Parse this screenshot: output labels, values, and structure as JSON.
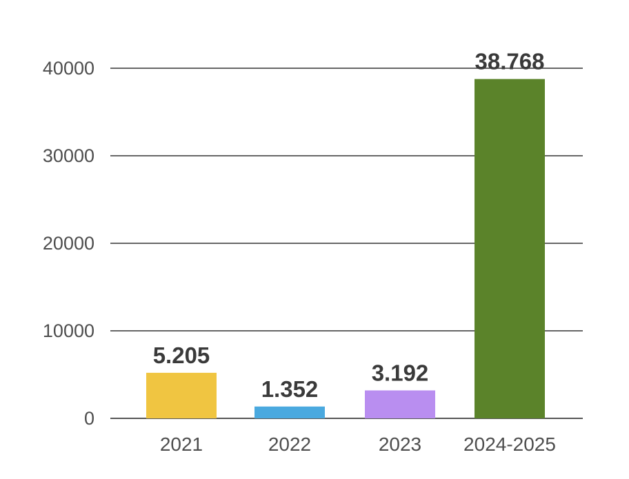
{
  "chart_data": {
    "type": "bar",
    "title": "",
    "xlabel": "",
    "ylabel": "",
    "categories": [
      "2021",
      "2022",
      "2023",
      "2024-2025"
    ],
    "values": [
      5205,
      1352,
      3192,
      38768
    ],
    "data_labels": [
      "5.205",
      "1.352",
      "3.192",
      "38.768"
    ],
    "bar_colors": [
      "#f0c541",
      "#4aa9df",
      "#b98ef0",
      "#5b832a"
    ],
    "ylim": [
      0,
      40000
    ],
    "yticks": [
      0,
      10000,
      20000,
      30000,
      40000
    ],
    "ytick_labels": [
      "0",
      "10000",
      "20000",
      "30000",
      "40000"
    ],
    "grid": true,
    "legend": "none"
  }
}
